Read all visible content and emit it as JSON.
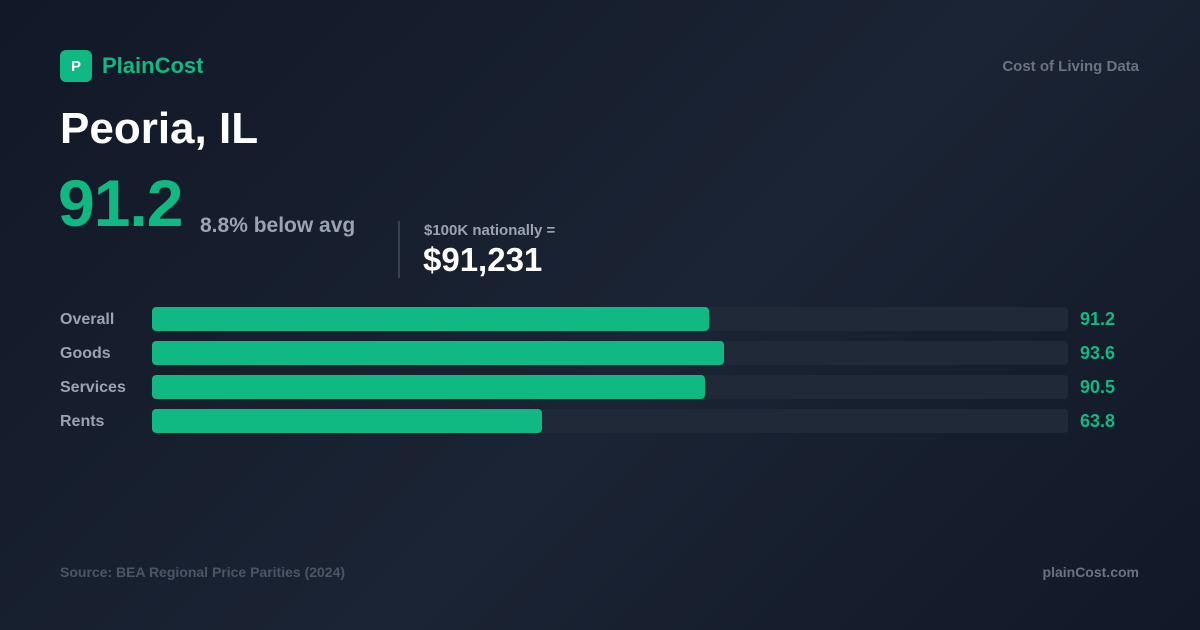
{
  "brand": {
    "logo_letter": "P",
    "name": "PlainCost",
    "tagline": "Cost of Living Data"
  },
  "headline": {
    "city": "Peoria, IL",
    "index": "91.2",
    "delta_text": "8.8% below avg",
    "equivalent_label": "$100K nationally =",
    "equivalent_value": "$91,231"
  },
  "colors": {
    "accent": "#10b981",
    "background": "#111827",
    "track": "#1f2937"
  },
  "chart_data": {
    "type": "bar",
    "orientation": "horizontal",
    "categories": [
      "Overall",
      "Goods",
      "Services",
      "Rents"
    ],
    "values": [
      91.2,
      93.6,
      90.5,
      63.8
    ],
    "xlim": [
      0,
      150
    ]
  },
  "footer": {
    "source": "Source: BEA Regional Price Parities (2024)",
    "site": "plainCost.com"
  }
}
